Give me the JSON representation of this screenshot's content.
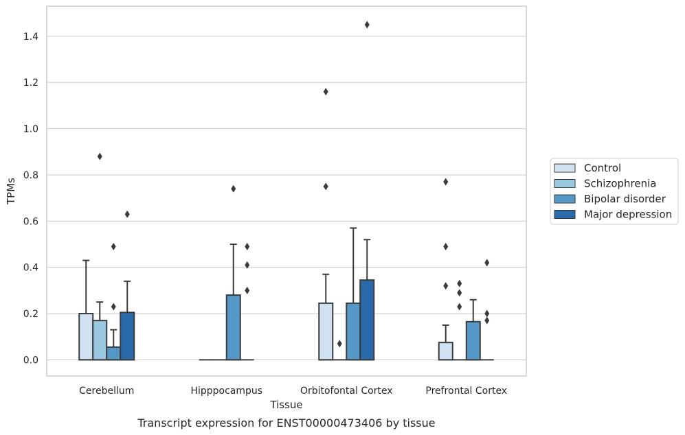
{
  "chart_data": {
    "type": "box",
    "title": "",
    "caption": "Transcript expression for ENST00000473406 by tissue",
    "xlabel": "Tissue",
    "ylabel": "TPMs",
    "ylim": [
      -0.07,
      1.53
    ],
    "yticks": [
      0.0,
      0.2,
      0.4,
      0.6,
      0.8,
      1.0,
      1.2,
      1.4
    ],
    "ytick_labels": [
      "0.0",
      "0.2",
      "0.4",
      "0.6",
      "0.8",
      "1.0",
      "1.2",
      "1.4"
    ],
    "grid": "horizontal",
    "legend_position": "right",
    "categories": [
      "Cerebellum",
      "Hipppocampus",
      "Orbitofontal Cortex",
      "Prefrontal Cortex"
    ],
    "series": [
      {
        "name": "Control",
        "color": "#d0e1f2",
        "boxes": [
          {
            "q1": 0,
            "median": 0,
            "q3": 0.2,
            "whisker_high": 0.43,
            "outliers": []
          },
          {
            "q1": 0,
            "median": 0,
            "q3": 0,
            "whisker_high": 0,
            "outliers": []
          },
          {
            "q1": 0,
            "median": 0,
            "q3": 0.245,
            "whisker_high": 0.37,
            "outliers": [
              0.75,
              1.16
            ]
          },
          {
            "q1": 0,
            "median": 0,
            "q3": 0.075,
            "whisker_high": 0.15,
            "outliers": [
              0.32,
              0.49,
              0.77
            ]
          }
        ]
      },
      {
        "name": "Schizophrenia",
        "color": "#9ac8e0",
        "boxes": [
          {
            "q1": 0,
            "median": 0,
            "q3": 0.17,
            "whisker_high": 0.25,
            "outliers": [
              0.88
            ]
          },
          {
            "q1": 0,
            "median": 0,
            "q3": 0,
            "whisker_high": 0,
            "outliers": []
          },
          {
            "q1": 0,
            "median": 0,
            "q3": 0,
            "whisker_high": 0,
            "outliers": [
              0.07
            ]
          },
          {
            "q1": 0,
            "median": 0,
            "q3": 0,
            "whisker_high": 0,
            "outliers": [
              0.23,
              0.29,
              0.33
            ]
          }
        ]
      },
      {
        "name": "Bipolar disorder",
        "color": "#5597c7",
        "boxes": [
          {
            "q1": 0,
            "median": 0,
            "q3": 0.055,
            "whisker_high": 0.13,
            "outliers": [
              0.23,
              0.49
            ]
          },
          {
            "q1": 0,
            "median": 0,
            "q3": 0.28,
            "whisker_high": 0.5,
            "outliers": [
              0.74
            ]
          },
          {
            "q1": 0,
            "median": 0,
            "q3": 0.245,
            "whisker_high": 0.57,
            "outliers": []
          },
          {
            "q1": 0,
            "median": 0,
            "q3": 0.165,
            "whisker_high": 0.26,
            "outliers": []
          }
        ]
      },
      {
        "name": "Major depression",
        "color": "#2a6aaa",
        "boxes": [
          {
            "q1": 0,
            "median": 0,
            "q3": 0.205,
            "whisker_high": 0.34,
            "outliers": [
              0.63
            ]
          },
          {
            "q1": 0,
            "median": 0,
            "q3": 0,
            "whisker_high": 0,
            "outliers": [
              0.3,
              0.41,
              0.49
            ]
          },
          {
            "q1": 0,
            "median": 0,
            "q3": 0.345,
            "whisker_high": 0.52,
            "outliers": [
              1.45
            ]
          },
          {
            "q1": 0,
            "median": 0,
            "q3": 0,
            "whisker_high": 0,
            "outliers": [
              0.17,
              0.2,
              0.42
            ]
          }
        ]
      }
    ]
  }
}
